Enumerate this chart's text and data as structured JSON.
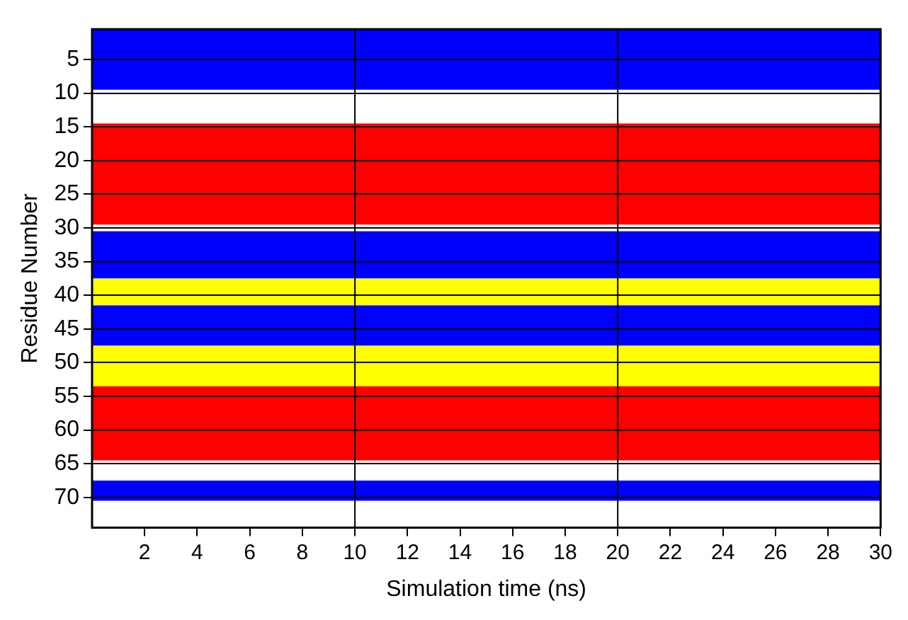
{
  "chart_data": {
    "type": "line",
    "xlabel": "Simulation time (ns)",
    "ylabel": "Residue Number",
    "xlim": [
      0,
      30
    ],
    "xticks": [
      2,
      4,
      6,
      8,
      10,
      12,
      14,
      16,
      18,
      20,
      22,
      24,
      26,
      28,
      30
    ],
    "ylim": [
      74.5,
      0.5
    ],
    "yticks": [
      5,
      10,
      15,
      20,
      25,
      30,
      35,
      40,
      45,
      50,
      55,
      60,
      65,
      70
    ],
    "grid": "y",
    "bands": [
      {
        "axis": "y",
        "from": 0.5,
        "to": 9.5,
        "color": "#0000ff"
      },
      {
        "axis": "y",
        "from": 14.5,
        "to": 29.5,
        "color": "#ff0000"
      },
      {
        "axis": "y",
        "from": 30.5,
        "to": 37.5,
        "color": "#0000ff"
      },
      {
        "axis": "y",
        "from": 37.5,
        "to": 41.5,
        "color": "#ffff00"
      },
      {
        "axis": "y",
        "from": 41.5,
        "to": 47.5,
        "color": "#0000ff"
      },
      {
        "axis": "y",
        "from": 47.5,
        "to": 53.5,
        "color": "#ffff00"
      },
      {
        "axis": "y",
        "from": 53.5,
        "to": 64.5,
        "color": "#ff0000"
      },
      {
        "axis": "y",
        "from": 67.5,
        "to": 70.5,
        "color": "#0000ff"
      }
    ],
    "ref_lines": [
      {
        "axis": "x",
        "value": 10,
        "color": "#000000"
      },
      {
        "axis": "x",
        "value": 20,
        "color": "#000000"
      }
    ]
  }
}
